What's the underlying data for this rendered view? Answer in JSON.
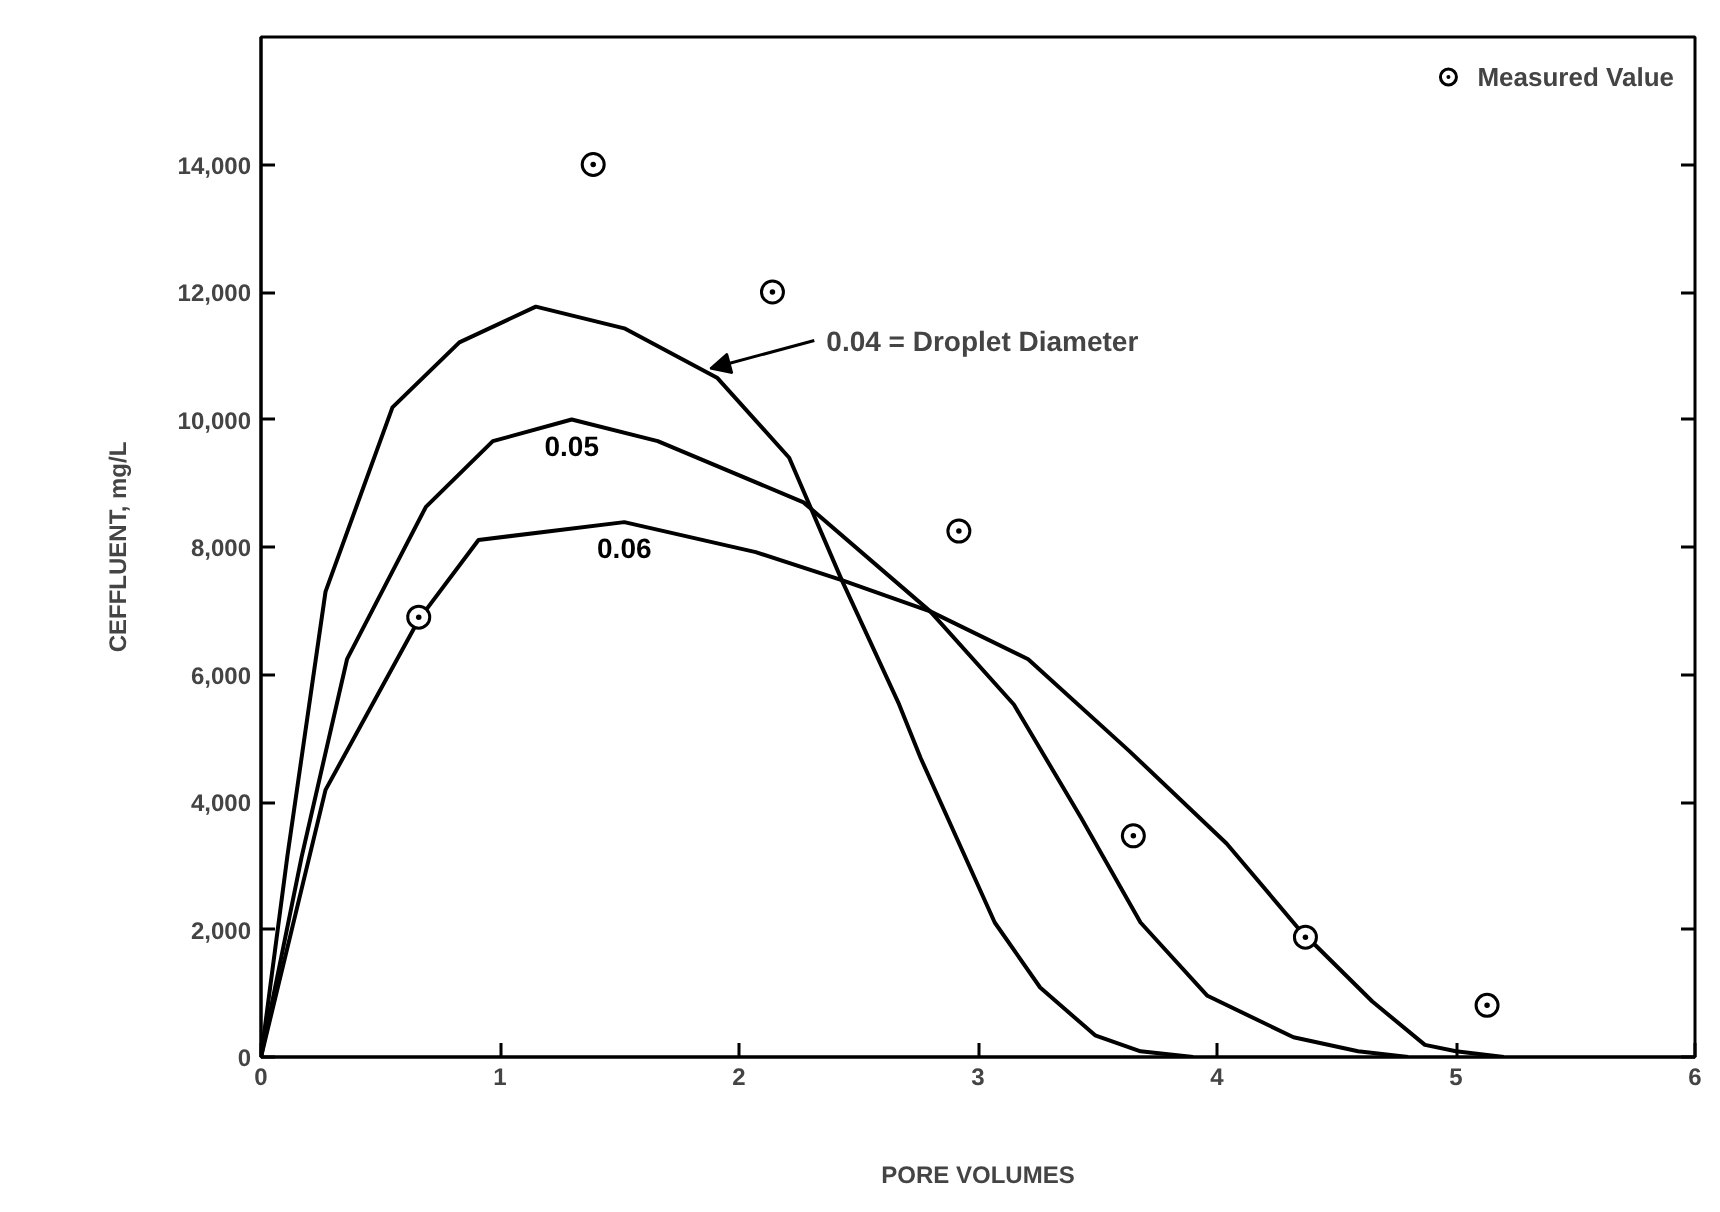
{
  "chart_data": {
    "type": "line",
    "xlabel": "PORE VOLUMES",
    "ylabel": "CEFFLUENT, mg/L",
    "xlim": [
      0,
      6
    ],
    "xticks": [
      0,
      1,
      2,
      3,
      4,
      5,
      6
    ],
    "ylim": [
      0,
      16000
    ],
    "yticks": [
      0,
      {
        "value": 2000,
        "label": "2,000"
      },
      {
        "value": 4000,
        "label": "4,000"
      },
      {
        "value": 6000,
        "label": "6,000"
      },
      {
        "value": 8000,
        "label": "8,000"
      },
      {
        "value": 10000,
        "label": "10,000"
      },
      {
        "value": 12000,
        "label": "12,000"
      },
      {
        "value": 14000,
        "label": "14,000"
      }
    ],
    "grid": false,
    "legend": "top right",
    "line_style": "solid",
    "series": [
      {
        "color": "#000000",
        "x": [
          0,
          0.11,
          0.27,
          0.55,
          0.83,
          1.15,
          1.52,
          1.91,
          2.21,
          2.43,
          2.67,
          2.76,
          3.07,
          3.26,
          3.49,
          3.68,
          3.9
        ],
        "values": [
          0,
          3140,
          7300,
          10190,
          11210,
          11770,
          11430,
          10650,
          9400,
          7480,
          5530,
          4690,
          2110,
          1090,
          340,
          90,
          0
        ]
      },
      {
        "name": "0.05",
        "color": "#000000",
        "x": [
          0,
          0.17,
          0.36,
          0.69,
          0.97,
          1.3,
          1.66,
          2.27,
          2.8,
          3.15,
          3.43,
          3.68,
          3.96,
          4.32,
          4.59,
          4.8
        ],
        "values": [
          0,
          3140,
          6240,
          8630,
          9660,
          10000,
          9660,
          8700,
          6990,
          5530,
          3760,
          2110,
          960,
          310,
          90,
          0
        ]
      },
      {
        "name": "0.06",
        "color": "#000000",
        "x": [
          0,
          0.27,
          0.66,
          0.91,
          1.52,
          2.07,
          2.43,
          2.8,
          3.21,
          3.63,
          4.04,
          4.34,
          4.65,
          4.87,
          5.0,
          5.2
        ],
        "values": [
          0,
          4190,
          6860,
          8110,
          8390,
          7920,
          7480,
          6990,
          6240,
          4810,
          3350,
          2020,
          870,
          190,
          90,
          0
        ]
      },
      {
        "name": "Measured Value",
        "type": "scatter",
        "marker": "circle",
        "color": "#000000",
        "x": [
          0.66,
          1.39,
          2.14,
          2.92,
          3.65,
          4.37,
          5.13
        ],
        "values": [
          6900,
          14000,
          12000,
          8250,
          3470,
          1880,
          810
        ]
      }
    ],
    "annotations": [
      {
        "text": "0.04 = Droplet Diameter",
        "x": 1.88,
        "y": 10800
      }
    ]
  }
}
